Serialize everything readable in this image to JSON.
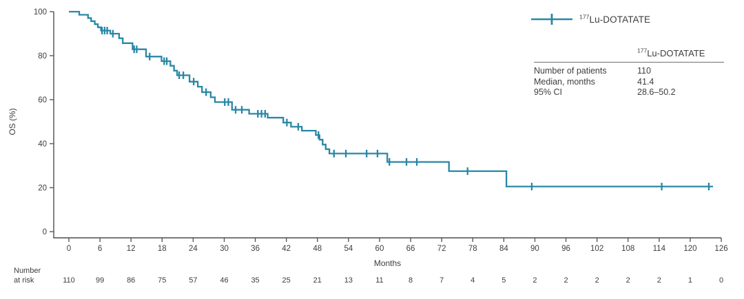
{
  "accent_color": "#2787a6",
  "axis_color": "#4d4d4d",
  "text_color": "#3d3d3d",
  "legend": {
    "isotope": "177",
    "name": "Lu-DOTATATE"
  },
  "stats_table": {
    "header_isotope": "177",
    "header_name": "Lu-DOTATATE",
    "rows": [
      {
        "label": "Number of patients",
        "value": "110"
      },
      {
        "label": "Median, months",
        "value": "41.4"
      },
      {
        "label": "95% CI",
        "value": "28.6–50.2"
      }
    ]
  },
  "chart_data": {
    "type": "line",
    "subtype": "kaplan-meier-step",
    "title": "",
    "xlabel": "Months",
    "ylabel": "OS (%)",
    "xlim": [
      0,
      126
    ],
    "ylim": [
      0,
      100
    ],
    "grid": false,
    "legend_position": "top-right",
    "x_ticks": [
      0,
      6,
      12,
      18,
      24,
      30,
      36,
      42,
      48,
      54,
      60,
      66,
      72,
      78,
      84,
      90,
      96,
      102,
      108,
      114,
      120,
      126
    ],
    "y_ticks": [
      0,
      20,
      40,
      60,
      80,
      100
    ],
    "series": [
      {
        "name": "177Lu-DOTATATE",
        "color": "#2787a6",
        "start": [
          0,
          100
        ],
        "steps": [
          [
            2,
            98.6
          ],
          [
            3.7,
            97.1
          ],
          [
            4.3,
            95.7
          ],
          [
            5,
            94.3
          ],
          [
            5.6,
            92.9
          ],
          [
            6.2,
            91.4
          ],
          [
            8,
            90
          ],
          [
            9.7,
            87.9
          ],
          [
            10.4,
            85.7
          ],
          [
            12.3,
            82.9
          ],
          [
            14.9,
            79.6
          ],
          [
            17.9,
            77.5
          ],
          [
            19.6,
            75.4
          ],
          [
            20.3,
            73.2
          ],
          [
            20.9,
            71.1
          ],
          [
            23.3,
            68.2
          ],
          [
            24.9,
            65.9
          ],
          [
            25.7,
            63.4
          ],
          [
            27.4,
            61.1
          ],
          [
            28.2,
            58.9
          ],
          [
            31.5,
            55.4
          ],
          [
            34.8,
            53.6
          ],
          [
            38.4,
            51.8
          ],
          [
            41.4,
            49.6
          ],
          [
            42.9,
            47.7
          ],
          [
            45,
            45.9
          ],
          [
            47.7,
            43.9
          ],
          [
            48.4,
            41.8
          ],
          [
            49,
            39.6
          ],
          [
            49.6,
            37.5
          ],
          [
            50.3,
            35.5
          ],
          [
            61.5,
            31.7
          ],
          [
            73.4,
            27.5
          ],
          [
            84.5,
            20.5
          ]
        ],
        "end_month": 124.4,
        "censor_marks": [
          [
            6.4,
            91.4
          ],
          [
            6.9,
            91.4
          ],
          [
            7.4,
            91.4
          ],
          [
            8.5,
            90
          ],
          [
            12.6,
            82.9
          ],
          [
            13.1,
            82.9
          ],
          [
            15.6,
            79.6
          ],
          [
            18.4,
            77.5
          ],
          [
            18.9,
            77.5
          ],
          [
            21.3,
            71.1
          ],
          [
            22.1,
            71.1
          ],
          [
            24.1,
            68.2
          ],
          [
            26.5,
            63.4
          ],
          [
            30.1,
            58.9
          ],
          [
            30.8,
            58.9
          ],
          [
            32.2,
            55.4
          ],
          [
            33.4,
            55.4
          ],
          [
            36.5,
            53.6
          ],
          [
            37.2,
            53.6
          ],
          [
            37.9,
            53.6
          ],
          [
            42.1,
            49.6
          ],
          [
            44.3,
            47.7
          ],
          [
            48.2,
            43.9
          ],
          [
            51.2,
            35.5
          ],
          [
            53.5,
            35.5
          ],
          [
            57.5,
            35.5
          ],
          [
            59.6,
            35.5
          ],
          [
            61.9,
            31.7
          ],
          [
            65.2,
            31.7
          ],
          [
            67.2,
            31.7
          ],
          [
            77,
            27.5
          ],
          [
            89.4,
            20.5
          ],
          [
            114.5,
            20.5
          ],
          [
            123.6,
            20.5
          ]
        ]
      }
    ],
    "number_at_risk": {
      "label_line1": "Number",
      "label_line2": "at risk",
      "values": [
        110,
        99,
        86,
        75,
        57,
        46,
        35,
        25,
        21,
        13,
        11,
        8,
        7,
        4,
        5,
        2,
        2,
        2,
        2,
        2,
        1,
        0
      ]
    }
  }
}
